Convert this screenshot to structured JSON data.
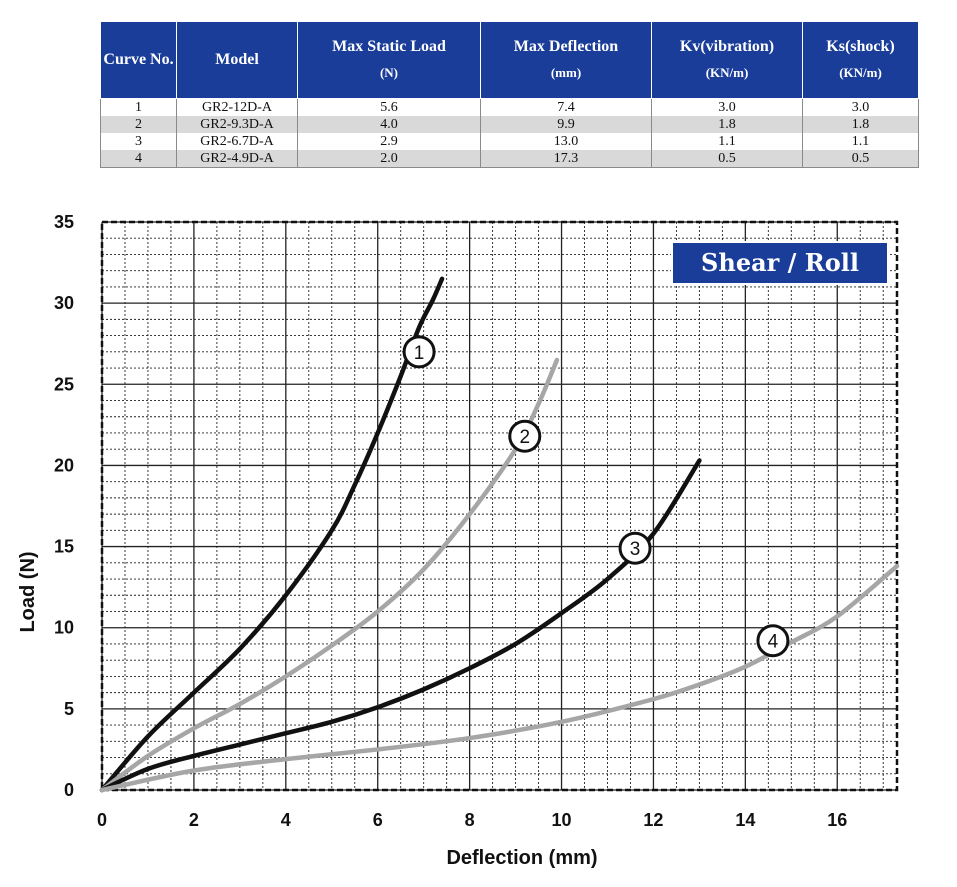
{
  "table": {
    "headers": [
      {
        "title": "Curve No.",
        "unit": ""
      },
      {
        "title": "Model",
        "unit": ""
      },
      {
        "title": "Max Static Load",
        "unit": "(N)"
      },
      {
        "title": "Max Deflection",
        "unit": "(mm)"
      },
      {
        "title": "Kv(vibration)",
        "unit": "(KN/m)"
      },
      {
        "title": "Ks(shock)",
        "unit": "(KN/m)"
      }
    ],
    "rows": [
      {
        "curve": "1",
        "model": "GR2-12D-A",
        "max_static_load": "5.6",
        "max_deflection": "7.4",
        "kv": "3.0",
        "ks": "3.0"
      },
      {
        "curve": "2",
        "model": "GR2-9.3D-A",
        "max_static_load": "4.0",
        "max_deflection": "9.9",
        "kv": "1.8",
        "ks": "1.8"
      },
      {
        "curve": "3",
        "model": "GR2-6.7D-A",
        "max_static_load": "2.9",
        "max_deflection": "13.0",
        "kv": "1.1",
        "ks": "1.1"
      },
      {
        "curve": "4",
        "model": "GR2-4.9D-A",
        "max_static_load": "2.0",
        "max_deflection": "17.3",
        "kv": "0.5",
        "ks": "0.5"
      }
    ]
  },
  "chart_data": {
    "type": "line",
    "title": "Shear / Roll",
    "xlabel": "Deflection (mm)",
    "ylabel": "Load (N)",
    "xlim": [
      0,
      17.3
    ],
    "ylim": [
      0,
      35
    ],
    "xticks": [
      "0",
      "2",
      "4",
      "6",
      "8",
      "10",
      "12",
      "14",
      "16"
    ],
    "yticks": [
      "0",
      "5",
      "10",
      "15",
      "20",
      "25",
      "30",
      "35"
    ],
    "grid": true,
    "badge_color": "#1a3d9a",
    "series": [
      {
        "name": "1",
        "color": "#111111",
        "x": [
          0,
          1,
          2,
          3,
          4,
          5,
          5.5,
          6,
          6.5,
          6.9,
          7.2,
          7.4
        ],
        "y": [
          0,
          3.3,
          6.0,
          8.7,
          12.0,
          16.0,
          18.8,
          22.0,
          25.5,
          28.5,
          30.2,
          31.5
        ]
      },
      {
        "name": "2",
        "color": "#a6a6a6",
        "x": [
          0,
          1,
          2,
          3,
          4,
          5,
          6,
          7,
          8,
          9,
          9.5,
          9.9
        ],
        "y": [
          0,
          2.1,
          3.8,
          5.3,
          7.0,
          8.9,
          11.0,
          13.6,
          17.0,
          21.0,
          23.8,
          26.5
        ]
      },
      {
        "name": "3",
        "color": "#111111",
        "x": [
          0,
          1,
          2,
          3,
          4,
          5,
          6,
          7,
          8,
          9,
          10,
          11,
          12,
          13
        ],
        "y": [
          0,
          1.3,
          2.1,
          2.8,
          3.5,
          4.2,
          5.1,
          6.2,
          7.5,
          9.0,
          10.9,
          13.0,
          15.8,
          20.3
        ]
      },
      {
        "name": "4",
        "color": "#a6a6a6",
        "x": [
          0,
          2,
          4,
          6,
          8,
          10,
          12,
          13,
          14,
          15,
          16,
          17.3
        ],
        "y": [
          0,
          1.2,
          1.9,
          2.5,
          3.2,
          4.2,
          5.6,
          6.5,
          7.6,
          9.1,
          10.7,
          13.8
        ]
      }
    ],
    "curve_labels": [
      {
        "text": "1",
        "x": 6.9,
        "y": 27.0
      },
      {
        "text": "2",
        "x": 9.2,
        "y": 21.8
      },
      {
        "text": "3",
        "x": 11.6,
        "y": 14.9
      },
      {
        "text": "4",
        "x": 14.6,
        "y": 9.2
      }
    ]
  }
}
